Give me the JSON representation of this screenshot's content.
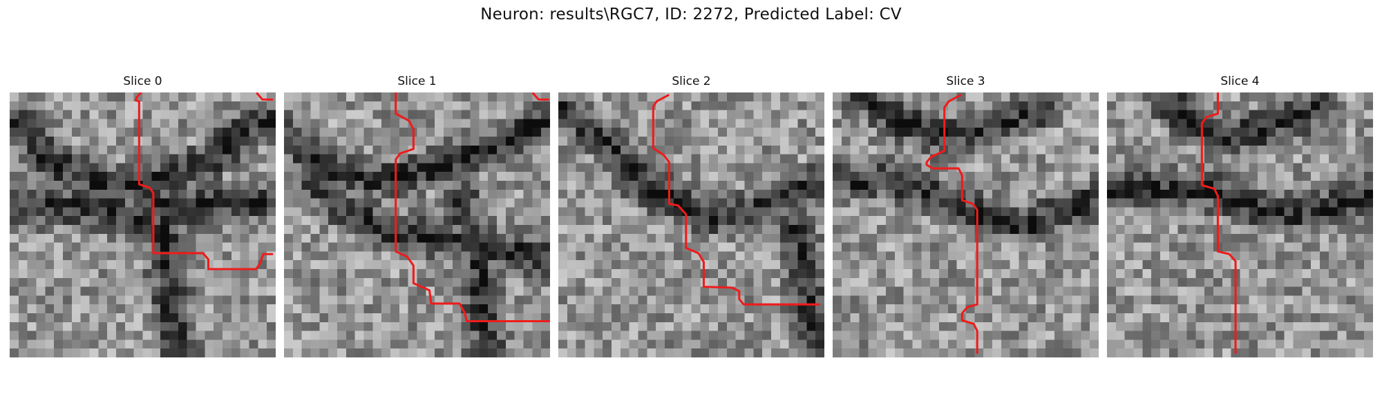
{
  "figure": {
    "title": "Neuron: results\\RGC7, ID: 2272, Predicted Label: CV"
  },
  "colors": {
    "trace": "#ee1c1c",
    "background": "#ffffff"
  },
  "panels": [
    {
      "title": "Slice 0",
      "seed": 11
    },
    {
      "title": "Slice 1",
      "seed": 23
    },
    {
      "title": "Slice 2",
      "seed": 37
    },
    {
      "title": "Slice 3",
      "seed": 51
    },
    {
      "title": "Slice 4",
      "seed": 67
    }
  ]
}
